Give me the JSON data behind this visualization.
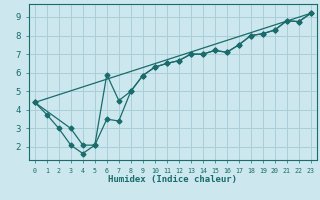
{
  "xlabel": "Humidex (Indice chaleur)",
  "xlim": [
    -0.5,
    23.5
  ],
  "ylim": [
    1.3,
    9.7
  ],
  "bg_color": "#cce8ee",
  "grid_color": "#aacfd8",
  "line_color": "#1a6b6b",
  "line1_x": [
    0,
    1,
    2,
    3,
    4,
    5,
    6,
    7,
    8,
    9,
    10,
    11,
    12,
    13,
    14,
    15,
    16,
    17,
    18,
    19,
    20,
    21,
    22,
    23
  ],
  "line1_y": [
    4.4,
    3.75,
    3.0,
    2.1,
    1.65,
    2.1,
    3.5,
    3.4,
    5.0,
    5.85,
    6.3,
    6.5,
    6.65,
    7.0,
    7.0,
    7.2,
    7.1,
    7.5,
    8.0,
    8.1,
    8.3,
    8.8,
    8.75,
    9.2
  ],
  "line2_x": [
    0,
    3,
    4,
    5,
    6,
    7,
    8,
    9,
    10,
    11,
    12,
    13,
    14,
    15,
    16,
    17,
    18,
    19,
    20,
    21,
    22,
    23
  ],
  "line2_y": [
    4.4,
    3.0,
    2.1,
    2.1,
    5.9,
    4.5,
    5.0,
    5.85,
    6.3,
    6.5,
    6.65,
    7.0,
    7.0,
    7.2,
    7.1,
    7.5,
    8.0,
    8.1,
    8.3,
    8.8,
    8.75,
    9.2
  ],
  "line3_x": [
    0,
    23
  ],
  "line3_y": [
    4.4,
    9.2
  ],
  "xticks": [
    0,
    1,
    2,
    3,
    4,
    5,
    6,
    7,
    8,
    9,
    10,
    11,
    12,
    13,
    14,
    15,
    16,
    17,
    18,
    19,
    20,
    21,
    22,
    23
  ],
  "yticks": [
    2,
    3,
    4,
    5,
    6,
    7,
    8,
    9
  ],
  "xtick_labels": [
    "0",
    "1",
    "2",
    "3",
    "4",
    "5",
    "6",
    "7",
    "8",
    "9",
    "10",
    "11",
    "12",
    "13",
    "14",
    "15",
    "16",
    "17",
    "18",
    "19",
    "20",
    "21",
    "22",
    "23"
  ]
}
